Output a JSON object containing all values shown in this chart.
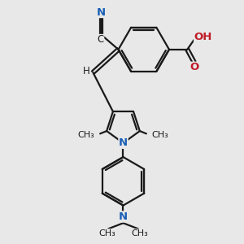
{
  "bg_color": "#e8e8e8",
  "bond_color": "#1a1a1a",
  "n_color": "#1a5fb4",
  "o_color": "#c01c28",
  "line_width": 1.6,
  "font_size": 8.5,
  "figsize": [
    3.0,
    3.0
  ],
  "dpi": 100,
  "xlim": [
    0,
    10
  ],
  "ylim": [
    0,
    10
  ]
}
